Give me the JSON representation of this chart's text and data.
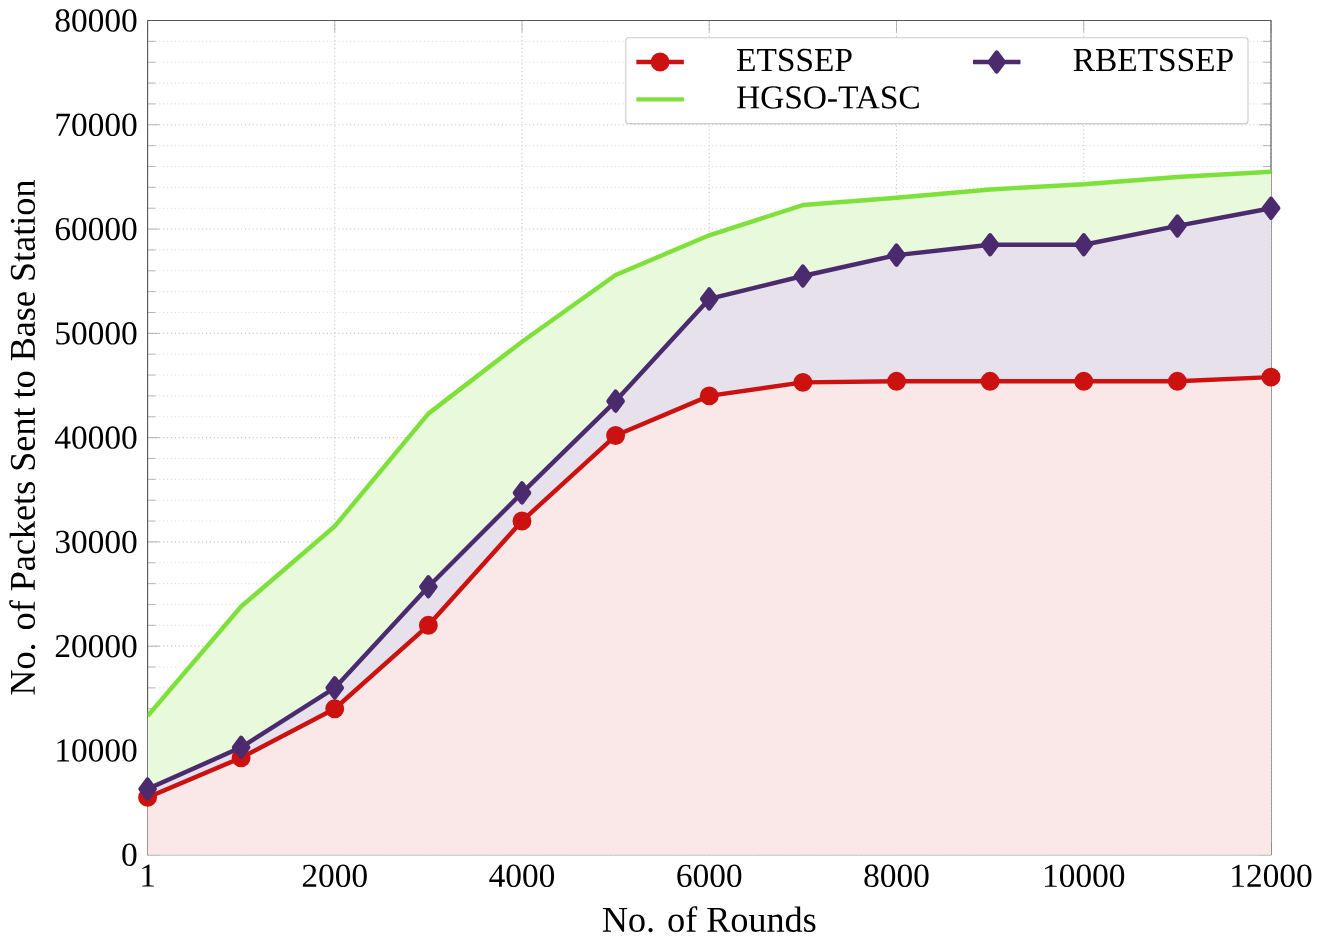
{
  "chart_data": {
    "type": "area",
    "xlabel": "No. of Rounds",
    "ylabel": "No. of Packets Sent to Base Station",
    "x": [
      1,
      1000,
      2000,
      3000,
      4000,
      5000,
      6000,
      7000,
      8000,
      9000,
      10000,
      11000,
      12000
    ],
    "series": [
      {
        "name": "ETSSEP",
        "color": "#cc1111",
        "marker": "circle",
        "values": [
          5500,
          9300,
          14000,
          22000,
          32000,
          40200,
          44000,
          45300,
          45400,
          45400,
          45400,
          45400,
          45800
        ]
      },
      {
        "name": "RBETSSEP",
        "color": "#4b2a6e",
        "marker": "diamond",
        "values": [
          6300,
          10300,
          16000,
          25700,
          34700,
          43500,
          53300,
          55500,
          57500,
          58500,
          58500,
          60300,
          62000
        ]
      },
      {
        "name": "HGSO-TASC",
        "color": "#7ee03a",
        "marker": "none",
        "values": [
          13300,
          23800,
          31500,
          42300,
          49200,
          55600,
          59400,
          62300,
          63000,
          63800,
          64300,
          65000,
          65500
        ]
      }
    ],
    "xlim": [
      1,
      12000
    ],
    "xticks": [
      1,
      2000,
      4000,
      6000,
      8000,
      10000,
      12000
    ],
    "ylim": [
      0,
      80000
    ],
    "yticks": [
      0,
      10000,
      20000,
      30000,
      40000,
      50000,
      60000,
      70000,
      80000
    ],
    "grid": true,
    "legend": "top right"
  }
}
